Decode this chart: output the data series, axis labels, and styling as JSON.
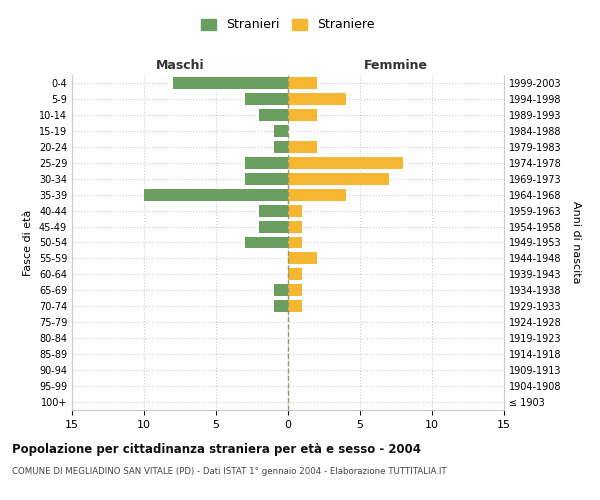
{
  "age_groups": [
    "100+",
    "95-99",
    "90-94",
    "85-89",
    "80-84",
    "75-79",
    "70-74",
    "65-69",
    "60-64",
    "55-59",
    "50-54",
    "45-49",
    "40-44",
    "35-39",
    "30-34",
    "25-29",
    "20-24",
    "15-19",
    "10-14",
    "5-9",
    "0-4"
  ],
  "birth_years": [
    "≤ 1903",
    "1904-1908",
    "1909-1913",
    "1914-1918",
    "1919-1923",
    "1924-1928",
    "1929-1933",
    "1934-1938",
    "1939-1943",
    "1944-1948",
    "1949-1953",
    "1954-1958",
    "1959-1963",
    "1964-1968",
    "1969-1973",
    "1974-1978",
    "1979-1983",
    "1984-1988",
    "1989-1993",
    "1994-1998",
    "1999-2003"
  ],
  "males": [
    0,
    0,
    0,
    0,
    0,
    0,
    1,
    1,
    0,
    0,
    3,
    2,
    2,
    10,
    3,
    3,
    1,
    1,
    2,
    3,
    8
  ],
  "females": [
    0,
    0,
    0,
    0,
    0,
    0,
    1,
    1,
    1,
    2,
    1,
    1,
    1,
    4,
    7,
    8,
    2,
    0,
    2,
    4,
    2
  ],
  "male_color": "#6a9e5e",
  "female_color": "#f5b731",
  "background_color": "#ffffff",
  "grid_color": "#cccccc",
  "center_line_color": "#999966",
  "title": "Popolazione per cittadinanza straniera per età e sesso - 2004",
  "subtitle": "COMUNE DI MEGLIADINO SAN VITALE (PD) - Dati ISTAT 1° gennaio 2004 - Elaborazione TUTTITALIA.IT",
  "xlabel_left": "Maschi",
  "xlabel_right": "Femmine",
  "ylabel_left": "Fasce di età",
  "ylabel_right": "Anni di nascita",
  "legend_males": "Stranieri",
  "legend_females": "Straniere",
  "xlim": 15,
  "bar_height": 0.75
}
